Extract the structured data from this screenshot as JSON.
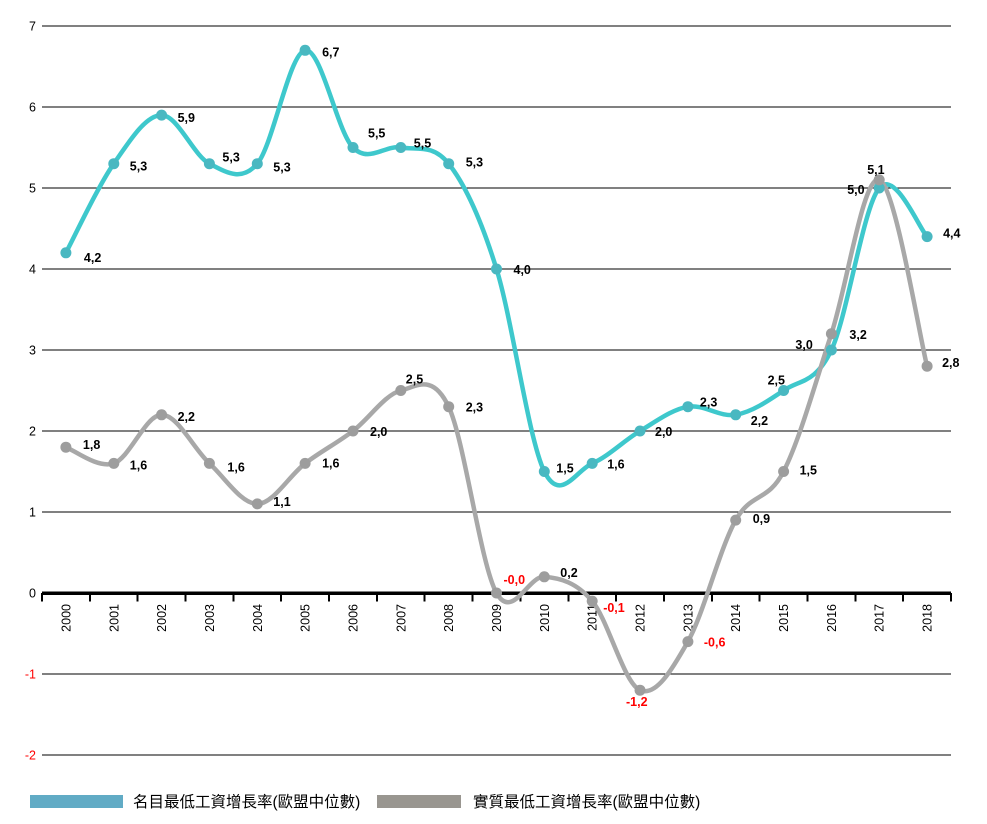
{
  "chart_data": {
    "type": "line",
    "title": "",
    "xlabel": "",
    "ylabel": "",
    "categories": [
      "2000",
      "2001",
      "2002",
      "2003",
      "2004",
      "2005",
      "2006",
      "2007",
      "2008",
      "2009",
      "2010",
      "2011",
      "2012",
      "2013",
      "2014",
      "2015",
      "2016",
      "2017",
      "2018"
    ],
    "series": [
      {
        "id": "nominal",
        "name": "名目最低工資增長率(歐盟中位數)",
        "line_color": "#3EC8CC",
        "marker_color": "#49B8C1",
        "legend_color": "#61ABC5",
        "values": [
          4.2,
          5.3,
          5.9,
          5.3,
          5.3,
          6.7,
          5.5,
          5.5,
          5.3,
          4.0,
          1.5,
          1.6,
          2.0,
          2.3,
          2.2,
          2.5,
          3.0,
          5.0,
          4.4
        ],
        "labels": [
          "4,2",
          "5,3",
          "5,9",
          "5,3",
          "5,3",
          "6,7",
          "5,5",
          "5,5",
          "5,3",
          "4,0",
          "1,5",
          "1,6",
          "2,0",
          "2,3",
          "2,2",
          "2,5",
          "3,0",
          "5,0",
          "4,4"
        ],
        "label_offsets": [
          [
            18,
            9
          ],
          [
            16,
            7
          ],
          [
            16,
            7
          ],
          [
            13,
            -2
          ],
          [
            16,
            8
          ],
          [
            17,
            6
          ],
          [
            15,
            -10
          ],
          [
            13,
            0
          ],
          [
            17,
            3
          ],
          [
            17,
            5
          ],
          [
            12,
            1
          ],
          [
            15,
            5
          ],
          [
            15,
            5
          ],
          [
            12,
            0
          ],
          [
            15,
            10
          ],
          [
            -16,
            -6
          ],
          [
            -36,
            -1
          ],
          [
            -32,
            6
          ],
          [
            16,
            1
          ]
        ]
      },
      {
        "id": "real",
        "name": "實質最低工資增長率(歐盟中位數)",
        "line_color": "#A8A8A8",
        "marker_color": "#9D9D9D",
        "legend_color": "#999690",
        "values": [
          1.8,
          1.6,
          2.2,
          1.6,
          1.1,
          1.6,
          2.0,
          2.5,
          2.3,
          -0.0,
          0.2,
          -0.1,
          -1.2,
          -0.6,
          0.9,
          1.5,
          3.2,
          5.1,
          2.8
        ],
        "labels": [
          "1,8",
          "1,6",
          "2,2",
          "1,6",
          "1,1",
          "1,6",
          "2,0",
          "2,5",
          "2,3",
          "-0,0",
          "0,2",
          "-0,1",
          "-1,2",
          "-0,6",
          "0,9",
          "1,5",
          "3,2",
          "5,1",
          "2,8"
        ],
        "label_offsets": [
          [
            17,
            2
          ],
          [
            16,
            6
          ],
          [
            16,
            6
          ],
          [
            18,
            8
          ],
          [
            16,
            2
          ],
          [
            17,
            4
          ],
          [
            17,
            5
          ],
          [
            5,
            -7
          ],
          [
            17,
            5
          ],
          [
            7,
            -9
          ],
          [
            16,
            0
          ],
          [
            11,
            11
          ],
          [
            -14,
            16
          ],
          [
            16,
            5
          ],
          [
            17,
            3
          ],
          [
            16,
            3
          ],
          [
            18,
            5
          ],
          [
            -12,
            -6
          ],
          [
            15,
            1
          ]
        ]
      }
    ],
    "yticks": [
      7,
      6,
      5,
      4,
      3,
      2,
      1,
      0,
      -1,
      -2
    ],
    "ylim": [
      -2,
      7
    ],
    "grid": true,
    "legend_position": "bottom",
    "colors": {
      "negative_label": "#FF0000",
      "positive_label": "#000000",
      "axis": "#000000",
      "grid": "#000000",
      "tick_label": "#000000"
    }
  }
}
